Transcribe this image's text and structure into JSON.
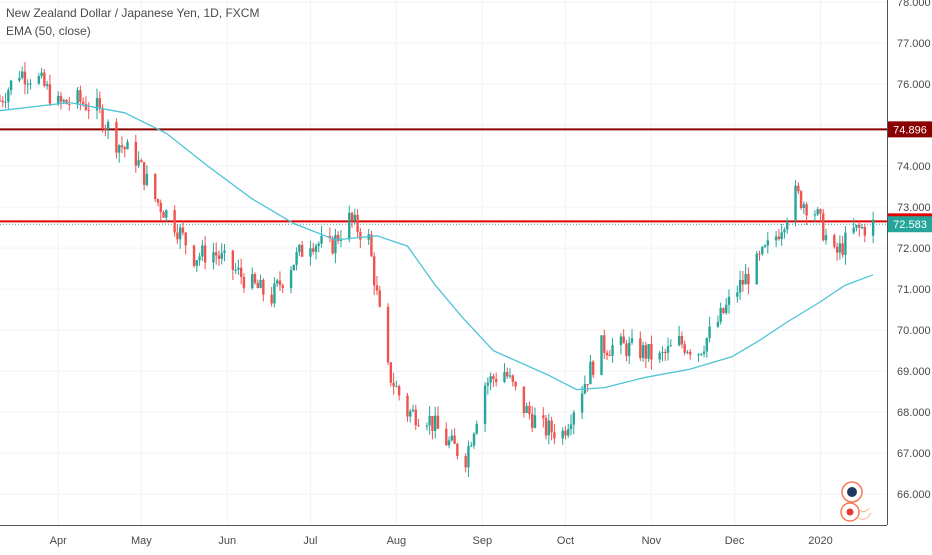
{
  "chart_data": {
    "type": "candlestick",
    "title": "New Zealand Dollar / Japanese Yen, 1D, FXCM",
    "indicator": "EMA (50, close)",
    "y_ticks": [
      66.0,
      67.0,
      68.0,
      69.0,
      70.0,
      71.0,
      72.0,
      73.0,
      74.0,
      75.0,
      76.0,
      77.0,
      78.0
    ],
    "y_tick_labels": [
      "66.000",
      "67.000",
      "68.000",
      "69.000",
      "70.000",
      "71.000",
      "72.000",
      "73.000",
      "74.000",
      "75.000",
      "76.000",
      "77.000",
      "78.000"
    ],
    "ylim": [
      65.25,
      78.05
    ],
    "x_labels": [
      {
        "label": "Apr",
        "date": "2019-04-01"
      },
      {
        "label": "May",
        "date": "2019-05-01"
      },
      {
        "label": "Jun",
        "date": "2019-06-01"
      },
      {
        "label": "Jul",
        "date": "2019-07-01"
      },
      {
        "label": "Aug",
        "date": "2019-08-01"
      },
      {
        "label": "Sep",
        "date": "2019-09-01"
      },
      {
        "label": "Oct",
        "date": "2019-10-01"
      },
      {
        "label": "Nov",
        "date": "2019-11-01"
      },
      {
        "label": "Dec",
        "date": "2019-12-01"
      },
      {
        "label": "2020",
        "date": "2020-01-01"
      }
    ],
    "xlim": [
      "2019-03-11",
      "2020-01-25"
    ],
    "horizontal_lines": [
      {
        "value": 74.896,
        "label": "74.896",
        "color": "#8b0000"
      },
      {
        "value": 72.653,
        "label": "72.653",
        "color": "#e00000"
      }
    ],
    "last_price": {
      "value": 72.583,
      "label": "72.583",
      "color": "#26a69a"
    },
    "close_series": {
      "dates": [
        "2019-03-11",
        "2019-03-18",
        "2019-03-25",
        "2019-04-01",
        "2019-04-08",
        "2019-04-15",
        "2019-04-22",
        "2019-04-29",
        "2019-05-06",
        "2019-05-13",
        "2019-05-20",
        "2019-05-27",
        "2019-06-03",
        "2019-06-10",
        "2019-06-17",
        "2019-06-24",
        "2019-07-01",
        "2019-07-08",
        "2019-07-15",
        "2019-07-22",
        "2019-07-29",
        "2019-08-05",
        "2019-08-12",
        "2019-08-19",
        "2019-08-26",
        "2019-09-02",
        "2019-09-09",
        "2019-09-16",
        "2019-09-23",
        "2019-09-30",
        "2019-10-07",
        "2019-10-14",
        "2019-10-21",
        "2019-10-28",
        "2019-11-04",
        "2019-11-11",
        "2019-11-18",
        "2019-11-25",
        "2019-12-02",
        "2019-12-09",
        "2019-12-16",
        "2019-12-23",
        "2019-12-30",
        "2020-01-06",
        "2020-01-13",
        "2020-01-20"
      ],
      "values": [
        75.6,
        76.3,
        76.1,
        75.5,
        75.6,
        75.4,
        74.6,
        74.2,
        73.2,
        72.6,
        71.8,
        71.9,
        71.5,
        71.1,
        70.8,
        71.6,
        72.2,
        72.0,
        72.7,
        72.2,
        69.0,
        68.0,
        67.9,
        67.3,
        66.9,
        68.7,
        69.0,
        68.1,
        67.6,
        67.5,
        68.6,
        69.6,
        69.6,
        69.5,
        69.3,
        69.7,
        69.5,
        70.2,
        71.0,
        71.6,
        72.3,
        73.3,
        72.9,
        71.8,
        72.4,
        72.58
      ]
    },
    "ema_series": {
      "dates": [
        "2019-03-11",
        "2019-04-05",
        "2019-04-25",
        "2019-05-10",
        "2019-05-25",
        "2019-06-10",
        "2019-06-25",
        "2019-07-10",
        "2019-07-25",
        "2019-08-05",
        "2019-08-15",
        "2019-08-25",
        "2019-09-05",
        "2019-09-15",
        "2019-09-25",
        "2019-10-05",
        "2019-10-15",
        "2019-10-30",
        "2019-11-15",
        "2019-11-30",
        "2019-12-10",
        "2019-12-20",
        "2019-12-31",
        "2020-01-10",
        "2020-01-20"
      ],
      "values": [
        75.35,
        75.55,
        75.3,
        74.8,
        74.0,
        73.2,
        72.6,
        72.2,
        72.3,
        72.05,
        71.1,
        70.3,
        69.5,
        69.2,
        68.9,
        68.55,
        68.6,
        68.85,
        69.05,
        69.35,
        69.75,
        70.2,
        70.65,
        71.1,
        71.35
      ]
    },
    "colors": {
      "up": "#26a69a",
      "down": "#ef5350",
      "ema": "#4dc4d6",
      "grid": "#f0f3fa",
      "axis_text": "#4a4a4a"
    }
  }
}
